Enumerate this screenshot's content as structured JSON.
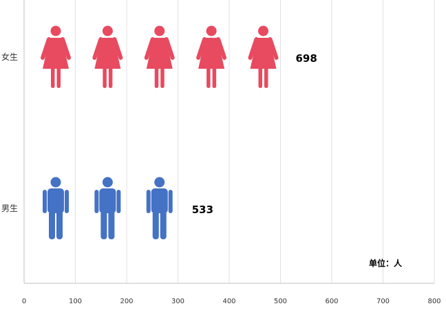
{
  "chart_data": {
    "type": "bar",
    "categories": [
      "女生",
      "男生"
    ],
    "values": [
      698,
      533
    ],
    "series_colors": [
      "#E84A5F",
      "#4472C4"
    ],
    "icons": [
      "female-person-icon",
      "male-person-icon"
    ],
    "icon_unit": 134,
    "xlim": [
      0,
      800
    ],
    "xticks": [
      "0",
      "100",
      "200",
      "300",
      "400",
      "500",
      "600",
      "700",
      "800"
    ],
    "grid": true,
    "orientation": "horizontal",
    "unit_note": "单位：人",
    "value_labels": [
      "698",
      "533"
    ]
  }
}
